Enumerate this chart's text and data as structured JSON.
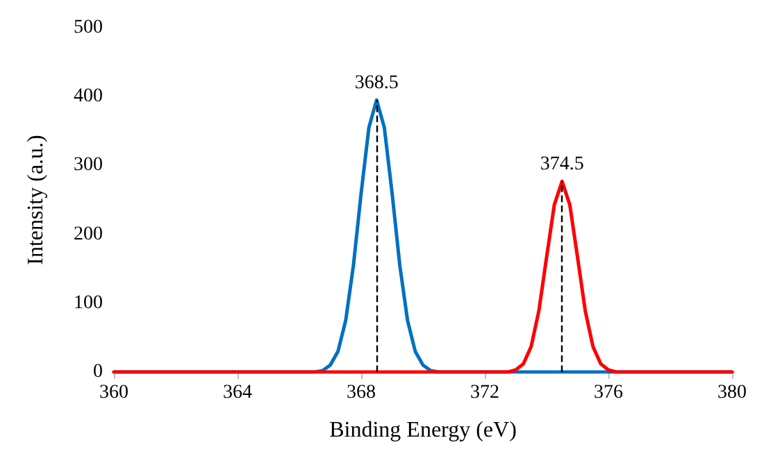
{
  "chart_data": {
    "type": "line",
    "xlabel": "Binding Energy (eV)",
    "ylabel": "Intensity (a.u.)",
    "xlim": [
      360,
      380
    ],
    "xticks": [
      360,
      364,
      368,
      372,
      376,
      380
    ],
    "ylim": [
      0,
      500
    ],
    "yticks": [
      0,
      100,
      200,
      300,
      400,
      500
    ],
    "grid": false,
    "marker": "none",
    "line_style": "solid",
    "series": [
      {
        "color": "#0070c0",
        "x": [
          360,
          366.5,
          366.75,
          367,
          367.25,
          367.5,
          367.75,
          368,
          368.25,
          368.5,
          368.75,
          369,
          369.25,
          369.5,
          369.75,
          370,
          370.25,
          370.5,
          380
        ],
        "values": [
          0,
          0,
          2,
          10,
          30,
          75,
          155,
          260,
          355,
          395,
          355,
          260,
          155,
          75,
          30,
          10,
          2,
          0,
          0
        ]
      },
      {
        "color": "#ff0000",
        "x": [
          360,
          372.75,
          373,
          373.25,
          373.5,
          373.75,
          374,
          374.25,
          374.5,
          374.75,
          375,
          375.25,
          375.5,
          375.75,
          376,
          376.25,
          380
        ],
        "values": [
          0,
          0,
          3,
          12,
          37,
          89,
          167,
          243,
          277,
          243,
          167,
          89,
          37,
          12,
          3,
          0,
          0
        ]
      }
    ],
    "annotations": [
      {
        "text": "368.5",
        "x": 368.5,
        "y": 395
      },
      {
        "text": "374.5",
        "x": 374.5,
        "y": 277
      }
    ]
  }
}
